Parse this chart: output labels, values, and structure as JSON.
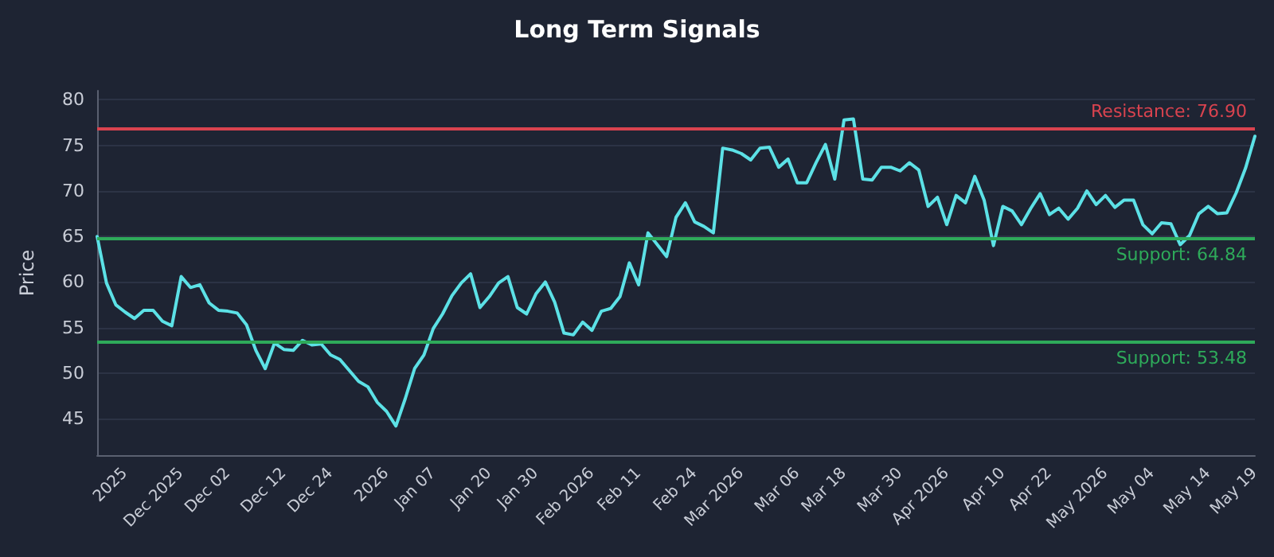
{
  "chart_data": {
    "type": "line",
    "title": "Long Term Signals",
    "ylabel": "Price",
    "categories": [
      null,
      null,
      null,
      "2025",
      null,
      null,
      null,
      null,
      null,
      "Dec 2025",
      null,
      null,
      null,
      null,
      "Dec 02",
      null,
      null,
      null,
      null,
      null,
      "Dec 12",
      null,
      null,
      null,
      null,
      "Dec 24",
      null,
      null,
      null,
      null,
      null,
      "2026",
      null,
      null,
      null,
      null,
      "Jan 07",
      null,
      null,
      null,
      null,
      null,
      "Jan 20",
      null,
      null,
      null,
      null,
      "Jan 30",
      null,
      null,
      null,
      null,
      null,
      "Feb 2026",
      null,
      null,
      null,
      null,
      "Feb 11",
      null,
      null,
      null,
      null,
      null,
      "Feb 24",
      null,
      null,
      null,
      null,
      "Mar 2026",
      null,
      null,
      null,
      null,
      null,
      "Mar 06",
      null,
      null,
      null,
      null,
      "Mar 18",
      null,
      null,
      null,
      null,
      null,
      "Mar 30",
      null,
      null,
      null,
      null,
      "Apr 2026",
      null,
      null,
      null,
      null,
      null,
      "Apr 10",
      null,
      null,
      null,
      null,
      "Apr 22",
      null,
      null,
      null,
      null,
      null,
      "May 2026",
      null,
      null,
      null,
      null,
      "May 04",
      null,
      null,
      null,
      null,
      null,
      "May 14",
      null,
      null,
      null,
      null,
      "May 19"
    ],
    "series": [
      {
        "color": "#5ce1e6",
        "values": [
          65.0,
          59.9,
          57.5,
          56.7,
          56.0,
          56.9,
          56.9,
          55.7,
          55.2,
          60.6,
          59.4,
          59.7,
          57.7,
          56.9,
          56.8,
          56.6,
          55.3,
          52.5,
          50.5,
          53.3,
          52.6,
          52.5,
          53.6,
          53.1,
          53.2,
          52.0,
          51.5,
          50.3,
          49.1,
          48.5,
          46.8,
          45.8,
          44.2,
          47.2,
          50.5,
          52.0,
          54.9,
          56.5,
          58.5,
          59.9,
          60.9,
          57.2,
          58.4,
          59.9,
          60.6,
          57.2,
          56.5,
          58.7,
          60.0,
          57.8,
          54.4,
          54.2,
          55.6,
          54.7,
          56.8,
          57.1,
          58.4,
          62.1,
          59.7,
          65.4,
          64.1,
          62.8,
          67.1,
          68.7,
          66.6,
          66.1,
          65.4,
          74.7,
          74.5,
          74.1,
          73.4,
          74.7,
          74.8,
          72.6,
          73.5,
          70.9,
          70.9,
          73.1,
          75.1,
          71.3,
          77.8,
          77.9,
          71.3,
          71.2,
          72.6,
          72.6,
          72.2,
          73.1,
          72.3,
          68.3,
          69.3,
          66.3,
          69.5,
          68.7,
          71.6,
          69.0,
          64.0,
          68.3,
          67.8,
          66.3,
          68.1,
          69.7,
          67.4,
          68.1,
          66.9,
          68.1,
          70.0,
          68.5,
          69.5,
          68.2,
          69.0,
          69.0,
          66.3,
          65.3,
          66.5,
          66.4,
          64.1,
          65.1,
          67.5,
          68.3,
          67.5,
          67.6,
          69.8,
          72.5,
          76.0
        ]
      }
    ],
    "ylim": [
      41,
      81
    ],
    "yticks": [
      45,
      50,
      55,
      60,
      65,
      70,
      75,
      80
    ],
    "grid": "y",
    "marker": "none",
    "line_style": "solid",
    "ref_lines": [
      {
        "axis": "y",
        "value": 76.9,
        "label": "Resistance: 76.90",
        "color": "#d9434f"
      },
      {
        "axis": "y",
        "value": 64.84,
        "label": "Support: 64.84",
        "color": "#2eaa5a"
      },
      {
        "axis": "y",
        "value": 53.48,
        "label": "Support: 53.48",
        "color": "#2eaa5a"
      }
    ]
  }
}
